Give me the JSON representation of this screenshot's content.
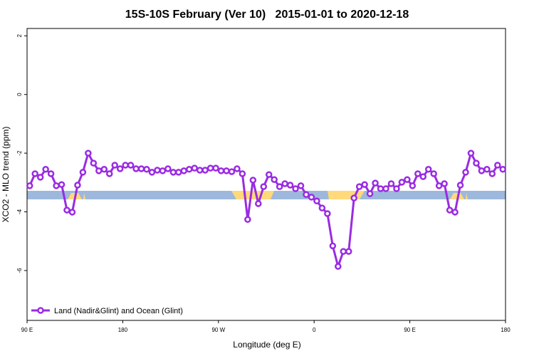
{
  "chart_data": {
    "type": "line",
    "title": "15S-10S February (Ver 10)   2015-01-01 to 2020-12-18",
    "x_label": "Longitude (deg E)",
    "y_label": "XCO2 - MLO trend (ppm)",
    "xlim": [
      90,
      540
    ],
    "ylim": [
      -7.7,
      2.25
    ],
    "xticks": [
      {
        "value": 90,
        "label": "90 E"
      },
      {
        "value": 180,
        "label": "180"
      },
      {
        "value": 270,
        "label": "90 W"
      },
      {
        "value": 360,
        "label": "0"
      },
      {
        "value": 450,
        "label": "90 E"
      },
      {
        "value": 540,
        "label": "180"
      }
    ],
    "yticks": [
      2,
      0,
      -2,
      -4,
      -6
    ],
    "x": [
      92.5,
      97.5,
      102.5,
      107.5,
      112.5,
      117.5,
      122.5,
      127.5,
      132.5,
      137.5,
      142.5,
      147.5,
      152.5,
      157.5,
      162.5,
      167.5,
      172.5,
      177.5,
      182.5,
      187.5,
      192.5,
      197.5,
      202.5,
      207.5,
      212.5,
      217.5,
      222.5,
      227.5,
      232.5,
      237.5,
      242.5,
      247.5,
      252.5,
      257.5,
      262.5,
      267.5,
      272.5,
      277.5,
      282.5,
      287.5,
      292.5,
      297.5,
      302.5,
      307.5,
      312.5,
      317.5,
      322.5,
      327.5,
      332.5,
      337.5,
      342.5,
      347.5,
      352.5,
      357.5,
      362.5,
      367.5,
      372.5,
      377.5,
      382.5,
      387.5,
      392.5,
      397.5,
      402.5,
      407.5,
      412.5,
      417.5,
      422.5,
      427.5,
      432.5,
      437.5,
      442.5,
      447.5,
      452.5,
      457.5,
      462.5,
      467.5,
      472.5,
      477.5,
      482.5,
      487.5,
      492.5,
      497.5,
      502.5,
      507.5,
      512.5,
      517.5,
      522.5,
      527.5,
      532.5,
      537.5
    ],
    "series": [
      {
        "name": "Land (Nadir&Glint) and Ocean (Glint)",
        "color": "#9a2be2",
        "values": [
          -3.11,
          -2.7,
          -2.82,
          -2.55,
          -2.7,
          -3.11,
          -3.07,
          -3.94,
          -4.01,
          -3.09,
          -2.65,
          -2.0,
          -2.34,
          -2.6,
          -2.55,
          -2.7,
          -2.41,
          -2.53,
          -2.41,
          -2.41,
          -2.53,
          -2.53,
          -2.55,
          -2.65,
          -2.58,
          -2.6,
          -2.53,
          -2.65,
          -2.65,
          -2.6,
          -2.55,
          -2.51,
          -2.58,
          -2.58,
          -2.51,
          -2.51,
          -2.6,
          -2.6,
          -2.63,
          -2.53,
          -2.7,
          -4.26,
          -2.92,
          -3.72,
          -3.14,
          -2.73,
          -2.9,
          -3.14,
          -3.04,
          -3.09,
          -3.21,
          -3.11,
          -3.41,
          -3.5,
          -3.63,
          -3.87,
          -4.06,
          -5.16,
          -5.86,
          -5.35,
          -5.35,
          -3.53,
          -3.14,
          -3.07,
          -3.38,
          -3.02,
          -3.21,
          -3.21,
          -3.04,
          -3.21,
          -2.99,
          -2.9,
          -3.11,
          -2.7,
          -2.8,
          -2.55,
          -2.7,
          -3.11,
          -3.04,
          -3.94,
          -4.01,
          -3.09,
          -2.65,
          -2.0,
          -2.34,
          -2.6,
          -2.55,
          -2.7,
          -2.41,
          -2.55
        ]
      }
    ],
    "legend": "bottom-left"
  }
}
